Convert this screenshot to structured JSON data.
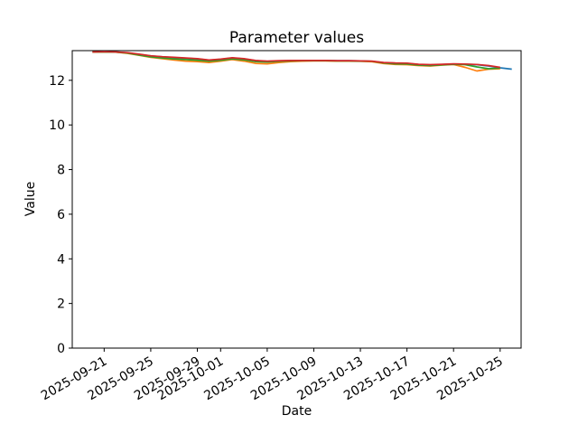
{
  "figure": {
    "title": "Parameter values",
    "background_color": "#ffffff"
  },
  "chart_data": {
    "type": "line",
    "title": "Parameter values",
    "xlabel": "Date",
    "ylabel": "Value",
    "grid": false,
    "legend": "none",
    "ylim": [
      0,
      13.33
    ],
    "xlim_days": [
      -1.74,
      36.8
    ],
    "y_ticks": [
      0,
      2,
      4,
      6,
      8,
      10,
      12
    ],
    "x_ticks": [
      "2025-09-21",
      "2025-09-25",
      "2025-09-29",
      "2025-10-01",
      "2025-10-05",
      "2025-10-09",
      "2025-10-13",
      "2025-10-17",
      "2025-10-21",
      "2025-10-25"
    ],
    "dates": [
      "2025-09-20",
      "2025-09-21",
      "2025-09-22",
      "2025-09-23",
      "2025-09-24",
      "2025-09-25",
      "2025-09-26",
      "2025-09-27",
      "2025-09-28",
      "2025-09-29",
      "2025-09-30",
      "2025-10-01",
      "2025-10-02",
      "2025-10-03",
      "2025-10-04",
      "2025-10-05",
      "2025-10-06",
      "2025-10-07",
      "2025-10-08",
      "2025-10-09",
      "2025-10-10",
      "2025-10-11",
      "2025-10-12",
      "2025-10-13",
      "2025-10-14",
      "2025-10-15",
      "2025-10-16",
      "2025-10-17",
      "2025-10-18",
      "2025-10-19",
      "2025-10-20",
      "2025-10-21",
      "2025-10-22",
      "2025-10-23",
      "2025-10-24",
      "2025-10-25",
      "2025-10-26"
    ],
    "series": [
      {
        "name": "blue",
        "color": "#1f77b4",
        "values": [
          13.27,
          13.28,
          13.27,
          13.23,
          13.16,
          13.09,
          13.05,
          13.02,
          12.99,
          12.96,
          12.9,
          12.94,
          13.0,
          12.96,
          12.88,
          12.85,
          12.87,
          12.88,
          12.89,
          12.89,
          12.89,
          12.88,
          12.88,
          12.87,
          12.85,
          12.79,
          12.77,
          12.76,
          12.71,
          12.69,
          12.71,
          12.73,
          12.72,
          12.7,
          12.64,
          12.56,
          12.5
        ]
      },
      {
        "name": "orange",
        "color": "#ff7f0e",
        "values": [
          13.26,
          13.27,
          13.26,
          13.21,
          13.12,
          13.03,
          12.97,
          12.91,
          12.86,
          12.84,
          12.8,
          12.86,
          12.93,
          12.86,
          12.76,
          12.74,
          12.8,
          12.84,
          12.86,
          12.87,
          12.87,
          12.86,
          12.86,
          12.85,
          12.83,
          12.75,
          12.71,
          12.7,
          12.66,
          12.64,
          12.68,
          12.71,
          12.58,
          12.42,
          12.5,
          12.52
        ]
      },
      {
        "name": "green",
        "color": "#2ca02c",
        "values": [
          13.27,
          13.27,
          13.26,
          13.22,
          13.13,
          13.05,
          13.0,
          12.96,
          12.93,
          12.9,
          12.86,
          12.9,
          12.96,
          12.92,
          12.84,
          12.82,
          12.85,
          12.87,
          12.88,
          12.88,
          12.88,
          12.87,
          12.87,
          12.86,
          12.85,
          12.78,
          12.74,
          12.73,
          12.68,
          12.66,
          12.69,
          12.72,
          12.7,
          12.6,
          12.52,
          12.55
        ]
      },
      {
        "name": "red",
        "color": "#d62728",
        "values": [
          13.27,
          13.28,
          13.27,
          13.24,
          13.17,
          13.1,
          13.06,
          13.03,
          13.0,
          12.97,
          12.91,
          12.95,
          13.01,
          12.97,
          12.89,
          12.86,
          12.88,
          12.89,
          12.89,
          12.89,
          12.89,
          12.88,
          12.88,
          12.87,
          12.86,
          12.8,
          12.78,
          12.77,
          12.72,
          12.7,
          12.72,
          12.74,
          12.73,
          12.71,
          12.66,
          12.58
        ]
      }
    ]
  }
}
